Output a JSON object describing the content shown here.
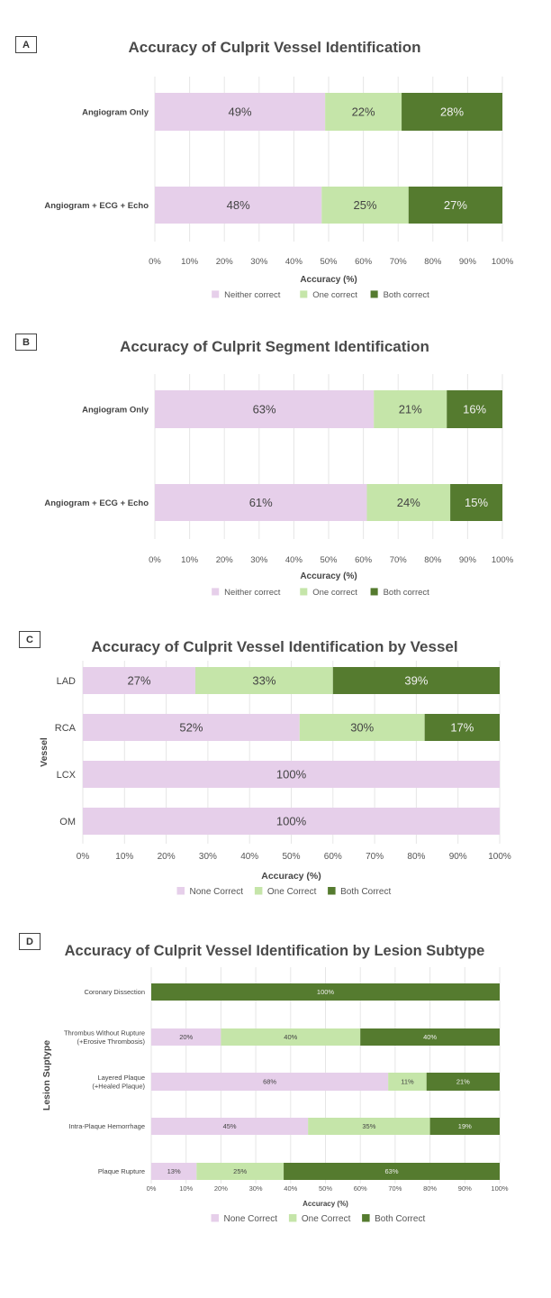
{
  "colors": {
    "none": "#e6cfea",
    "one": "#c5e5a9",
    "both": "#557b2f",
    "grid": "#e6e6e6",
    "text": "#444444"
  },
  "chart_data": [
    {
      "panel": "A",
      "type": "bar",
      "orientation": "horizontal-stacked",
      "title": "Accuracy of Culprit Vessel Identification",
      "xlabel": "Accuracy (%)",
      "ylabel": "",
      "xlim": [
        0,
        100
      ],
      "xticks": [
        "0%",
        "10%",
        "20%",
        "30%",
        "40%",
        "50%",
        "60%",
        "70%",
        "80%",
        "90%",
        "100%"
      ],
      "categories": [
        "Angiogram Only",
        "Angiogram + ECG + Echo"
      ],
      "series": [
        {
          "name": "Neither correct",
          "values": [
            49,
            48
          ]
        },
        {
          "name": "One correct",
          "values": [
            22,
            25
          ]
        },
        {
          "name": "Both correct",
          "values": [
            28,
            27
          ]
        }
      ],
      "legend": "bottom",
      "grid": true
    },
    {
      "panel": "B",
      "type": "bar",
      "orientation": "horizontal-stacked",
      "title": "Accuracy of Culprit Segment Identification",
      "xlabel": "Accuracy (%)",
      "ylabel": "",
      "xlim": [
        0,
        100
      ],
      "xticks": [
        "0%",
        "10%",
        "20%",
        "30%",
        "40%",
        "50%",
        "60%",
        "70%",
        "80%",
        "90%",
        "100%"
      ],
      "categories": [
        "Angiogram Only",
        "Angiogram + ECG + Echo"
      ],
      "series": [
        {
          "name": "Neither correct",
          "values": [
            63,
            61
          ]
        },
        {
          "name": "One correct",
          "values": [
            21,
            24
          ]
        },
        {
          "name": "Both correct",
          "values": [
            16,
            15
          ]
        }
      ],
      "legend": "bottom",
      "grid": true
    },
    {
      "panel": "C",
      "type": "bar",
      "orientation": "horizontal-stacked",
      "title": "Accuracy of Culprit Vessel Identification by Vessel",
      "xlabel": "Accuracy (%)",
      "ylabel": "Vessel",
      "xlim": [
        0,
        100
      ],
      "xticks": [
        "0%",
        "10%",
        "20%",
        "30%",
        "40%",
        "50%",
        "60%",
        "70%",
        "80%",
        "90%",
        "100%"
      ],
      "categories": [
        "LAD",
        "RCA",
        "LCX",
        "OM"
      ],
      "series": [
        {
          "name": "None Correct",
          "values": [
            27,
            52,
            100,
            100
          ]
        },
        {
          "name": "One Correct",
          "values": [
            33,
            30,
            0,
            0
          ]
        },
        {
          "name": "Both Correct",
          "values": [
            39,
            17,
            0,
            0
          ]
        }
      ],
      "legend": "bottom",
      "grid": true
    },
    {
      "panel": "D",
      "type": "bar",
      "orientation": "horizontal-stacked",
      "title": "Accuracy of Culprit Vessel Identification by Lesion Subtype",
      "xlabel": "Accuracy (%)",
      "ylabel": "Lesion Suptype",
      "xlim": [
        0,
        100
      ],
      "xticks": [
        "0%",
        "10%",
        "20%",
        "30%",
        "40%",
        "50%",
        "60%",
        "70%",
        "80%",
        "90%",
        "100%"
      ],
      "categories": [
        "Coronary Dissection",
        "Thrombus Without Rupture\n(+Erosive Thrombosis)",
        "Layered Plaque\n(+Healed Plaque)",
        "Intra-Plaque Hemorrhage",
        "Plaque Rupture"
      ],
      "series": [
        {
          "name": "None Correct",
          "values": [
            0,
            20,
            68,
            45,
            13
          ]
        },
        {
          "name": "One Correct",
          "values": [
            0,
            40,
            11,
            35,
            25
          ]
        },
        {
          "name": "Both Correct",
          "values": [
            100,
            40,
            21,
            19,
            63
          ]
        }
      ],
      "legend": "bottom",
      "grid": true
    }
  ]
}
